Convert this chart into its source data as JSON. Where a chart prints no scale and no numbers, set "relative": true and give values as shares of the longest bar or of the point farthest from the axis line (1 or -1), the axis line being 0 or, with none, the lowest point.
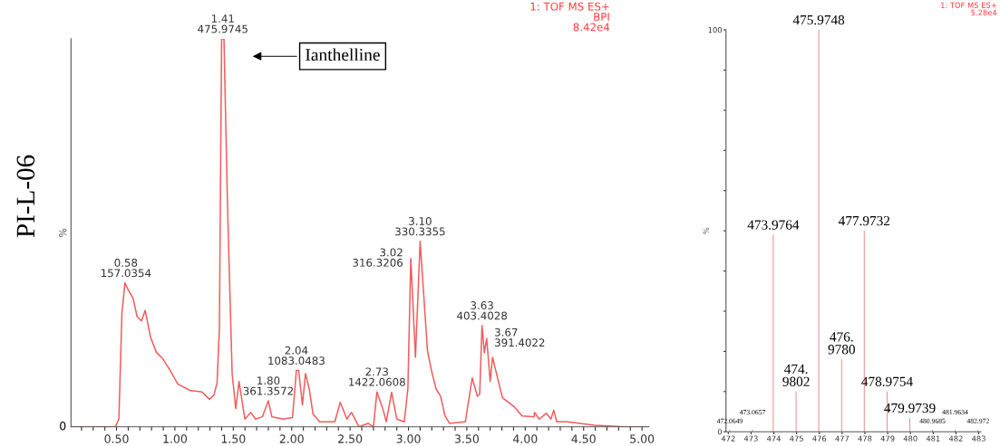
{
  "chart_data": [
    {
      "type": "line",
      "relative": true,
      "ylabel": "%",
      "color": "#f25c5c",
      "grid": false,
      "legend": false,
      "xlim": [
        0.11,
        5.06
      ],
      "xticks": [
        {
          "value": 0.2,
          "label": null
        },
        {
          "value": 0.3,
          "label": null
        },
        {
          "value": 0.4,
          "label": null
        },
        {
          "value": 0.5,
          "label": "0.50"
        },
        {
          "value": 0.6,
          "label": null
        },
        {
          "value": 0.7,
          "label": null
        },
        {
          "value": 0.8,
          "label": null
        },
        {
          "value": 0.9,
          "label": null
        },
        {
          "value": 1.0,
          "label": "1.00"
        },
        {
          "value": 1.1,
          "label": null
        },
        {
          "value": 1.2,
          "label": null
        },
        {
          "value": 1.3,
          "label": null
        },
        {
          "value": 1.4,
          "label": null
        },
        {
          "value": 1.5,
          "label": "1.50"
        },
        {
          "value": 1.6,
          "label": null
        },
        {
          "value": 1.7,
          "label": null
        },
        {
          "value": 1.8,
          "label": null
        },
        {
          "value": 1.9,
          "label": null
        },
        {
          "value": 2.0,
          "label": "2.00"
        },
        {
          "value": 2.1,
          "label": null
        },
        {
          "value": 2.2,
          "label": null
        },
        {
          "value": 2.3,
          "label": null
        },
        {
          "value": 2.4,
          "label": null
        },
        {
          "value": 2.5,
          "label": "2.50"
        },
        {
          "value": 2.6,
          "label": null
        },
        {
          "value": 2.7,
          "label": null
        },
        {
          "value": 2.8,
          "label": null
        },
        {
          "value": 2.9,
          "label": null
        },
        {
          "value": 3.0,
          "label": "3.00"
        },
        {
          "value": 3.1,
          "label": null
        },
        {
          "value": 3.2,
          "label": null
        },
        {
          "value": 3.3,
          "label": null
        },
        {
          "value": 3.4,
          "label": null
        },
        {
          "value": 3.5,
          "label": "3.50"
        },
        {
          "value": 3.6,
          "label": null
        },
        {
          "value": 3.7,
          "label": null
        },
        {
          "value": 3.8,
          "label": null
        },
        {
          "value": 3.9,
          "label": null
        },
        {
          "value": 4.0,
          "label": "4.00"
        },
        {
          "value": 4.1,
          "label": null
        },
        {
          "value": 4.2,
          "label": null
        },
        {
          "value": 4.3,
          "label": null
        },
        {
          "value": 4.4,
          "label": null
        },
        {
          "value": 4.5,
          "label": "4.50"
        },
        {
          "value": 4.6,
          "label": null
        },
        {
          "value": 4.7,
          "label": null
        },
        {
          "value": 4.8,
          "label": null
        },
        {
          "value": 4.9,
          "label": null
        },
        {
          "value": 5.0,
          "label": "5.00"
        }
      ],
      "x": [
        0.12,
        0.49,
        0.52,
        0.546,
        0.572,
        0.598,
        0.642,
        0.676,
        0.714,
        0.745,
        0.792,
        0.843,
        0.895,
        0.96,
        1.025,
        1.128,
        1.231,
        1.296,
        1.335,
        1.361,
        1.381,
        1.4,
        1.42,
        1.451,
        1.49,
        1.521,
        1.549,
        1.599,
        1.65,
        1.69,
        1.749,
        1.8,
        1.83,
        1.929,
        2.007,
        2.04,
        2.06,
        2.092,
        2.118,
        2.15,
        2.183,
        2.24,
        2.369,
        2.416,
        2.473,
        2.512,
        2.576,
        2.654,
        2.7,
        2.73,
        2.783,
        2.81,
        2.856,
        2.9,
        2.964,
        2.995,
        3.02,
        3.06,
        3.1,
        3.163,
        3.197,
        3.236,
        3.275,
        3.313,
        3.352,
        3.487,
        3.546,
        3.59,
        3.61,
        3.63,
        3.65,
        3.67,
        3.7,
        3.72,
        3.805,
        3.908,
        3.973,
        4.076,
        4.08,
        4.12,
        4.18,
        4.22,
        4.244,
        4.27,
        4.36,
        4.59,
        4.85,
        5.05
      ],
      "values": [
        0.0,
        0.0,
        0.02,
        0.292,
        0.371,
        0.354,
        0.331,
        0.284,
        0.273,
        0.3,
        0.23,
        0.191,
        0.176,
        0.145,
        0.11,
        0.094,
        0.09,
        0.071,
        0.082,
        0.114,
        0.254,
        1.0,
        1.0,
        0.564,
        0.137,
        0.047,
        0.117,
        0.02,
        0.037,
        0.02,
        0.026,
        0.067,
        0.026,
        0.02,
        0.024,
        0.145,
        0.145,
        0.056,
        0.137,
        0.098,
        0.033,
        0.013,
        0.013,
        0.063,
        0.02,
        0.037,
        0.0,
        0.009,
        0.0,
        0.09,
        0.044,
        0.013,
        0.089,
        0.02,
        0.013,
        0.098,
        0.434,
        0.179,
        0.478,
        0.196,
        0.145,
        0.098,
        0.079,
        0.028,
        0.009,
        0.013,
        0.126,
        0.079,
        0.084,
        0.261,
        0.191,
        0.228,
        0.117,
        0.179,
        0.075,
        0.051,
        0.028,
        0.026,
        0.037,
        0.02,
        0.035,
        0.02,
        0.043,
        0.013,
        0.013,
        0.004,
        0.0,
        0.0
      ],
      "annotations": [
        "PI-L-06",
        "1: TOF MS ES+\nBPI\n8.42e4",
        "0",
        "Ianthelline",
        {
          "text": "1.41\n475.9745",
          "x": 1.41,
          "y": 1.0
        },
        {
          "text": "0.58\n157.0354",
          "x": 0.58,
          "y": 0.371
        },
        {
          "text": "1.80\n361.3572",
          "x": 1.8,
          "y": 0.067
        },
        {
          "text": "2.04\n1083.0483",
          "x": 2.04,
          "y": 0.145
        },
        {
          "text": "2.73\n1422.0608",
          "x": 2.73,
          "y": 0.09
        },
        {
          "text": "3.02\n316.3206",
          "x": 3.02,
          "y": 0.434
        },
        {
          "text": "3.10\n330.3355",
          "x": 3.1,
          "y": 0.478
        },
        {
          "text": "3.63\n403.4028",
          "x": 3.63,
          "y": 0.261
        },
        {
          "text": "3.67\n391.4022",
          "x": 3.67,
          "y": 0.228
        }
      ]
    },
    {
      "type": "bar",
      "ylabel": "%",
      "color": "#f28b8b",
      "grid": false,
      "legend": false,
      "xlim": [
        471.9,
        483.1
      ],
      "xticks": [
        472,
        473,
        474,
        475,
        476,
        477,
        478,
        479,
        480,
        481,
        482,
        483
      ],
      "ylim": [
        0,
        100
      ],
      "yticks": [
        0,
        {
          "value": 10,
          "label": null
        },
        {
          "value": 20,
          "label": null
        },
        {
          "value": 30,
          "label": null
        },
        {
          "value": 40,
          "label": null
        },
        {
          "value": 50,
          "label": null
        },
        {
          "value": 60,
          "label": null
        },
        {
          "value": 70,
          "label": null
        },
        {
          "value": 80,
          "label": null
        },
        {
          "value": 90,
          "label": null
        },
        100
      ],
      "x": [
        472.0649,
        473.0657,
        473.9764,
        474.9802,
        475.9748,
        476.978,
        477.9732,
        478.9754,
        479.9739,
        480.9685,
        481.9634,
        482.972
      ],
      "values": [
        0.5,
        0.5,
        49,
        10,
        100,
        18,
        50,
        10,
        3.4,
        0.5,
        0.5,
        0.5
      ],
      "annotations": [
        "1: TOF MS ES+\n5.28e4",
        {
          "text": "472.0649",
          "x": 472.0649,
          "y": 0.5
        },
        {
          "text": "473.0657",
          "x": 473.0657,
          "y": 0.5
        },
        {
          "text": "473.9764",
          "x": 473.9764,
          "y": 49
        },
        {
          "text": "474.\n9802",
          "x": 474.9802,
          "y": 10
        },
        {
          "text": "475.9748",
          "x": 475.9748,
          "y": 100
        },
        {
          "text": "476.\n9780",
          "x": 476.978,
          "y": 18
        },
        {
          "text": "477.9732",
          "x": 477.9732,
          "y": 50
        },
        {
          "text": "478.9754",
          "x": 478.9754,
          "y": 10
        },
        {
          "text": "479.9739",
          "x": 479.9739,
          "y": 3.4
        },
        {
          "text": "480.9685",
          "x": 480.9685,
          "y": 0.5
        },
        {
          "text": "481.9634",
          "x": 481.9634,
          "y": 0.5
        },
        {
          "text": "482.972",
          "x": 482.972,
          "y": 0.5
        }
      ]
    }
  ]
}
